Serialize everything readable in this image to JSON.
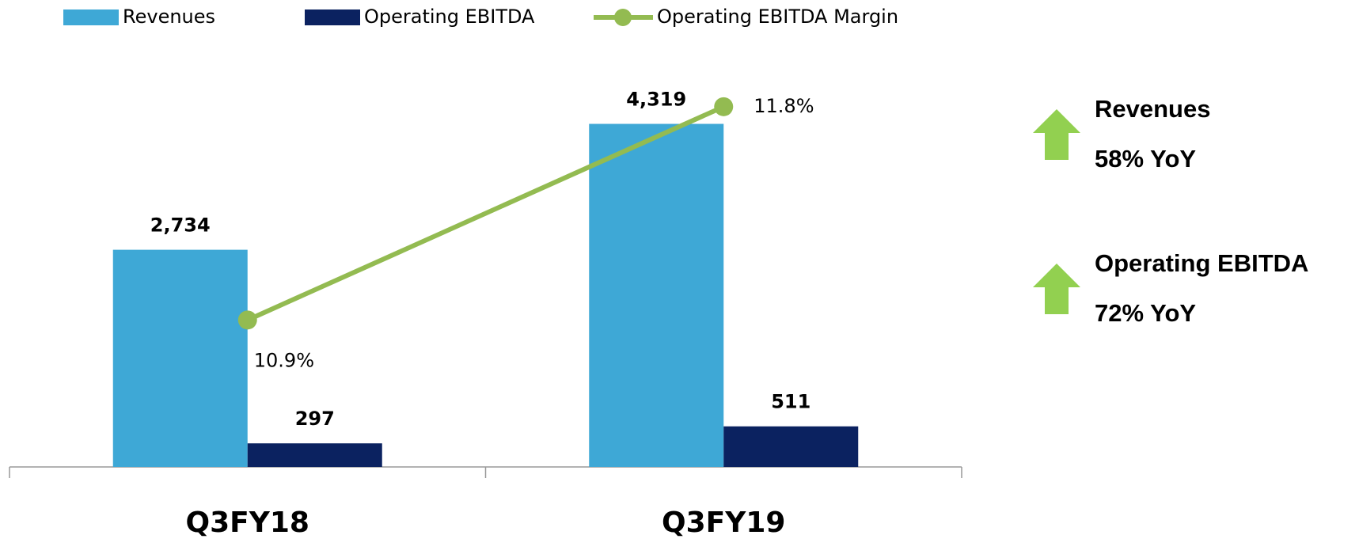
{
  "chart_data": {
    "type": "bar_line",
    "categories": [
      "Q3FY18",
      "Q3FY19"
    ],
    "series": [
      {
        "name": "Revenues",
        "color": "#3ea8d6",
        "values": [
          2734,
          4319
        ],
        "value_labels": [
          "2,734",
          "4,319"
        ]
      },
      {
        "name": "Operating EBITDA",
        "color": "#0b2260",
        "values": [
          297,
          511
        ]
      },
      {
        "name": "Operating EBITDA  Margin",
        "color": "#93bb51",
        "values": [
          10.9,
          11.8
        ],
        "value_labels": [
          "10.9%",
          "11.8%"
        ],
        "axis": "y2"
      }
    ],
    "ylim": [
      0,
      5460
    ],
    "y2lim": [
      10.28,
      12.11
    ],
    "annotations": [
      {
        "lines": [
          "Revenues",
          "58% YoY"
        ]
      },
      {
        "lines": [
          "Operating EBITDA",
          "72% YoY"
        ]
      }
    ]
  }
}
